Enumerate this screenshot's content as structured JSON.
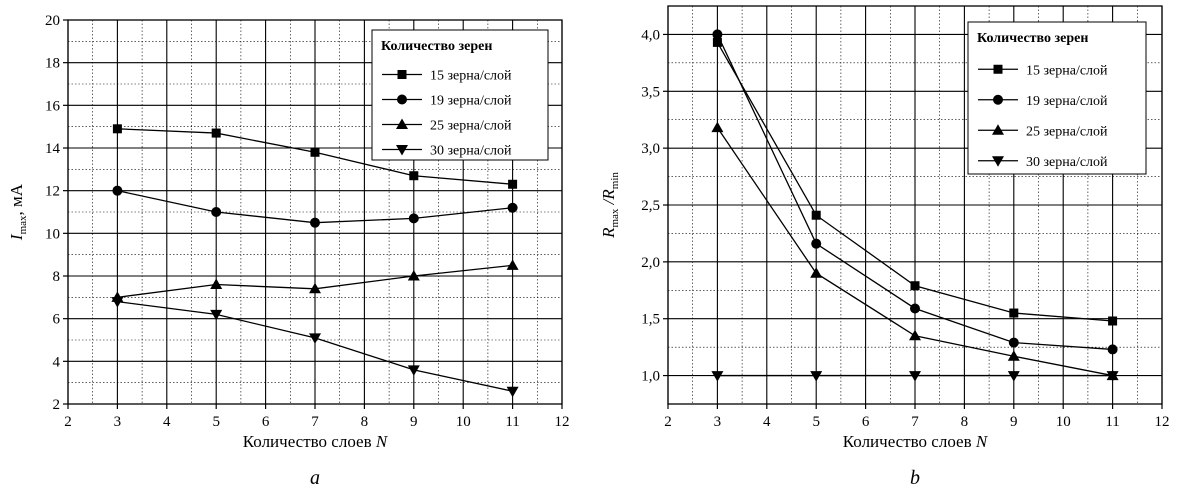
{
  "chart_data": [
    {
      "type": "line",
      "panel_label": "a",
      "xlabel": "Количество слоев N",
      "ylabel": "Imax, мА",
      "ylabel_main": "I",
      "ylabel_sub": "max",
      "ylabel_rest": ", мА",
      "xlim": [
        2,
        12
      ],
      "ylim": [
        2,
        20
      ],
      "xticks": [
        "2",
        "3",
        "4",
        "5",
        "6",
        "7",
        "8",
        "9",
        "10",
        "11",
        "12"
      ],
      "yticks": [
        "2",
        "4",
        "6",
        "8",
        "10",
        "12",
        "14",
        "16",
        "18",
        "20"
      ],
      "grid": true,
      "legend_position": "top-right",
      "legend_title": "Количество зерен",
      "x": [
        3,
        5,
        7,
        9,
        11
      ],
      "series": [
        {
          "name": "15 зерна/слой",
          "marker": "square",
          "values": [
            14.9,
            14.7,
            13.8,
            12.7,
            12.3
          ]
        },
        {
          "name": "19 зерна/слой",
          "marker": "circle",
          "values": [
            12.0,
            11.0,
            10.5,
            10.7,
            11.2
          ]
        },
        {
          "name": "25 зерна/слой",
          "marker": "triangle-up",
          "values": [
            7.0,
            7.6,
            7.4,
            8.0,
            8.5
          ]
        },
        {
          "name": "30 зерна/слой",
          "marker": "triangle-down",
          "values": [
            6.8,
            6.2,
            5.1,
            3.6,
            2.6
          ]
        }
      ]
    },
    {
      "type": "line",
      "panel_label": "b",
      "xlabel": "Количество слоев N",
      "ylabel": "Rmax / Rmin",
      "ylabel_main": "R",
      "ylabel_sub": "max",
      "ylabel_main2": " /R",
      "ylabel_sub2": "min",
      "xlim": [
        2,
        12
      ],
      "ylim": [
        0.75,
        4.25
      ],
      "xticks": [
        "2",
        "3",
        "4",
        "5",
        "6",
        "7",
        "8",
        "9",
        "10",
        "11",
        "12"
      ],
      "yticks": [
        "1,0",
        "1,5",
        "2,0",
        "2,5",
        "3,0",
        "3,5",
        "4,0"
      ],
      "grid": true,
      "legend_position": "top-right",
      "legend_title": "Количество зерен",
      "x": [
        3,
        5,
        7,
        9,
        11
      ],
      "series": [
        {
          "name": "15 зерна/слой",
          "marker": "square",
          "values": [
            3.93,
            2.41,
            1.79,
            1.55,
            1.48
          ]
        },
        {
          "name": "19 зерна/слой",
          "marker": "circle",
          "values": [
            4.0,
            2.16,
            1.59,
            1.29,
            1.23
          ]
        },
        {
          "name": "25 зерна/слой",
          "marker": "triangle-up",
          "values": [
            3.18,
            1.9,
            1.35,
            1.17,
            1.0
          ]
        },
        {
          "name": "30 зерна/слой",
          "marker": "triangle-down",
          "values": [
            1.0,
            1.0,
            1.0,
            1.0,
            1.0
          ]
        }
      ]
    }
  ]
}
